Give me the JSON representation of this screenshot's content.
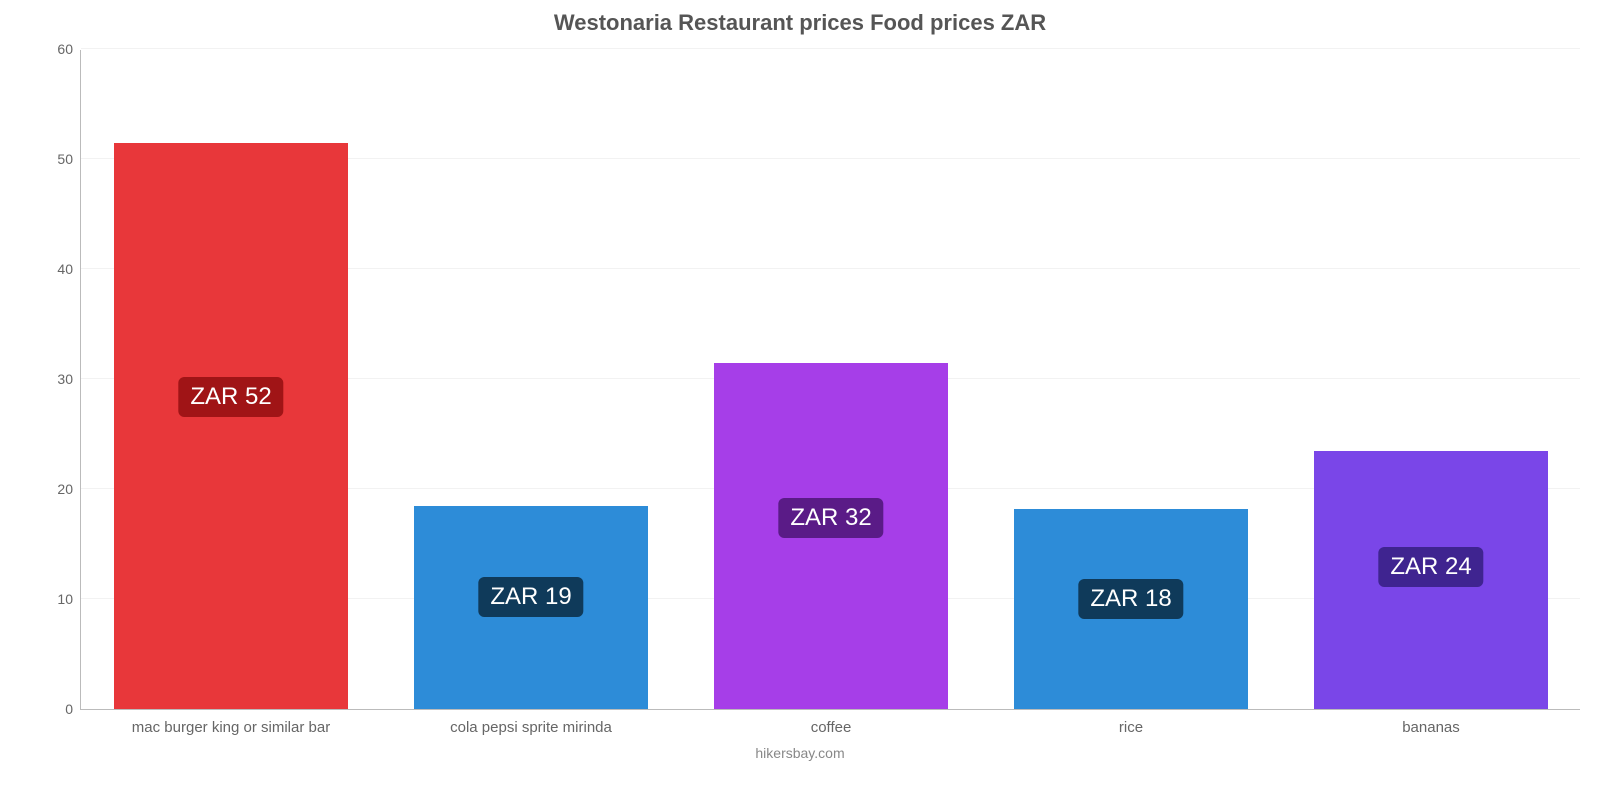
{
  "chart": {
    "type": "bar",
    "title": "Westonaria Restaurant prices Food prices ZAR",
    "title_fontsize": 22,
    "title_color": "#555555",
    "attribution": "hikersbay.com",
    "attribution_color": "#888888",
    "background_color": "#ffffff",
    "grid_color": "#f2f2f2",
    "axis_color": "#bbbbbb",
    "tick_color": "#666666",
    "tick_fontsize": 14,
    "xlabel_fontsize": 15,
    "ylim": [
      0,
      60
    ],
    "ytick_step": 10,
    "bar_width_ratio": 0.78,
    "categories": [
      "mac burger king or similar bar",
      "cola pepsi sprite mirinda",
      "coffee",
      "rice",
      "bananas"
    ],
    "values": [
      51.5,
      18.5,
      31.5,
      18.2,
      23.5
    ],
    "value_labels": [
      "ZAR 52",
      "ZAR 19",
      "ZAR 32",
      "ZAR 18",
      "ZAR 24"
    ],
    "bar_colors": [
      "#e8373a",
      "#2d8cd8",
      "#a63ee8",
      "#2d8cd8",
      "#7a46e8"
    ],
    "label_bg_colors": [
      "#a01416",
      "#0f3a5a",
      "#5a1b87",
      "#0f3a5a",
      "#3f2490"
    ],
    "datalabel_fontsize": 24
  }
}
